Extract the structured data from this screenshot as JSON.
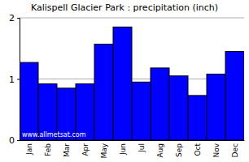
{
  "chart_data": {
    "type": "bar",
    "title": "Kalispell Glacier Park : precipitation (inch)",
    "categories": [
      "Jan",
      "Feb",
      "Mar",
      "Apr",
      "May",
      "Jun",
      "Jul",
      "Aug",
      "Sep",
      "Oct",
      "Nov",
      "Dec"
    ],
    "values": [
      1.27,
      0.92,
      0.85,
      0.92,
      1.57,
      1.85,
      0.95,
      1.18,
      1.05,
      0.73,
      1.08,
      1.45
    ],
    "color": "#0000ff",
    "ylim": [
      0,
      2
    ],
    "yticks": [
      0,
      1,
      2
    ],
    "grid": true,
    "annotations": [
      "www.allmetsat.com"
    ]
  }
}
